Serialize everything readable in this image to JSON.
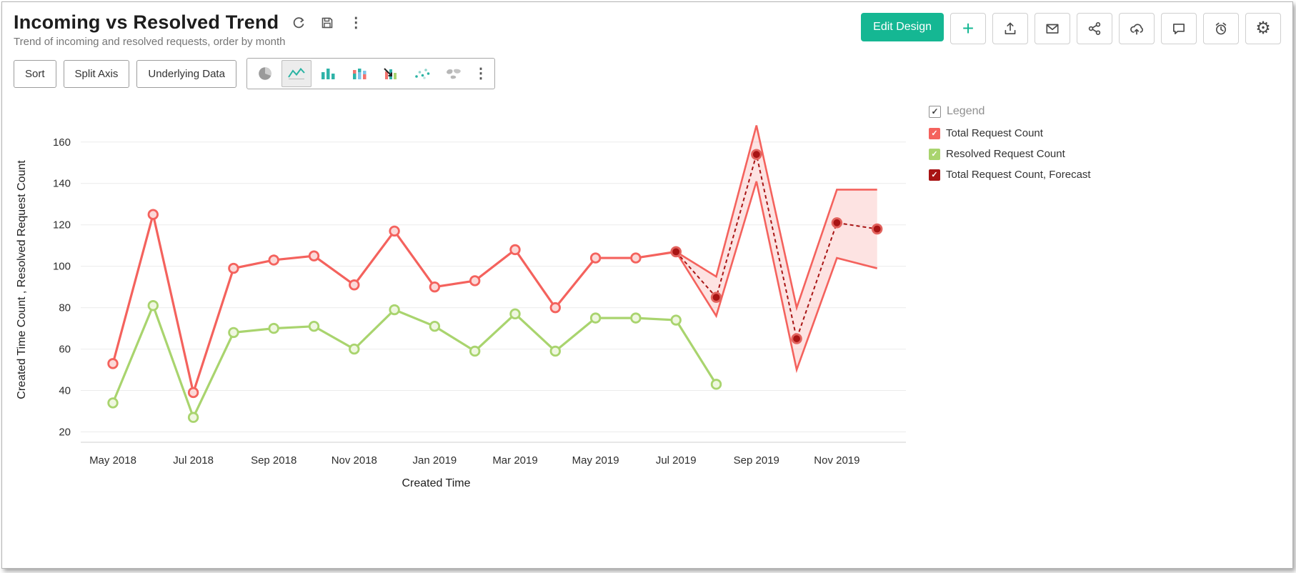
{
  "header": {
    "title": "Incoming vs Resolved Trend",
    "subtitle": "Trend of incoming and resolved requests, order by month"
  },
  "actions": {
    "edit_design": "Edit Design",
    "add": "+"
  },
  "toolbar": {
    "sort": "Sort",
    "split_axis": "Split Axis",
    "underlying_data": "Underlying Data"
  },
  "legend": {
    "title": "Legend",
    "items": [
      {
        "label": "Total Request Count",
        "color": "#f4625d"
      },
      {
        "label": "Resolved Request Count",
        "color": "#a9d46e"
      },
      {
        "label": "Total Request Count, Forecast",
        "color": "#a81414"
      }
    ]
  },
  "chart_data": {
    "type": "line",
    "title": "Incoming vs Resolved Trend",
    "xlabel": "Created Time",
    "ylabel": "Created Time Count , Resolved Request Count",
    "x": [
      "May 2018",
      "Jun 2018",
      "Jul 2018",
      "Aug 2018",
      "Sep 2018",
      "Oct 2018",
      "Nov 2018",
      "Dec 2018",
      "Jan 2019",
      "Feb 2019",
      "Mar 2019",
      "Apr 2019",
      "May 2019",
      "Jun 2019",
      "Jul 2019",
      "Aug 2019",
      "Sep 2019",
      "Oct 2019",
      "Nov 2019",
      "Dec 2019"
    ],
    "x_tick_indices": [
      0,
      2,
      4,
      6,
      8,
      10,
      12,
      14,
      16,
      18
    ],
    "y_ticks": [
      20,
      40,
      60,
      80,
      100,
      120,
      140,
      160
    ],
    "ylim": [
      15,
      172
    ],
    "grid": true,
    "legend_position": "right",
    "series": [
      {
        "name": "Total Request Count",
        "color": "#f4625d",
        "marker_fill": "#fbd9d8",
        "values": [
          53,
          125,
          39,
          99,
          103,
          105,
          91,
          117,
          90,
          93,
          108,
          80,
          104,
          104,
          107,
          null,
          null,
          null,
          null,
          null
        ]
      },
      {
        "name": "Resolved Request Count",
        "color": "#a9d46e",
        "marker_fill": "#eff7e0",
        "values": [
          34,
          81,
          27,
          68,
          70,
          71,
          60,
          79,
          71,
          59,
          77,
          59,
          75,
          75,
          74,
          43,
          null,
          null,
          null,
          null
        ]
      },
      {
        "name": "Total Request Count, Forecast",
        "color": "#a81414",
        "dashed": true,
        "marker_fill": "#a81414",
        "marker_stroke": "#e2625d",
        "values": [
          null,
          null,
          null,
          null,
          null,
          null,
          null,
          null,
          null,
          null,
          null,
          null,
          null,
          null,
          107,
          85,
          154,
          65,
          121,
          118
        ]
      }
    ],
    "forecast_band": {
      "start_index": 14,
      "upper": [
        107,
        95,
        168,
        80,
        137,
        137
      ],
      "lower": [
        107,
        76,
        141,
        50,
        104,
        99
      ],
      "fill": "#f4625d",
      "stroke": "#f4625d",
      "opacity": 0.18
    }
  }
}
